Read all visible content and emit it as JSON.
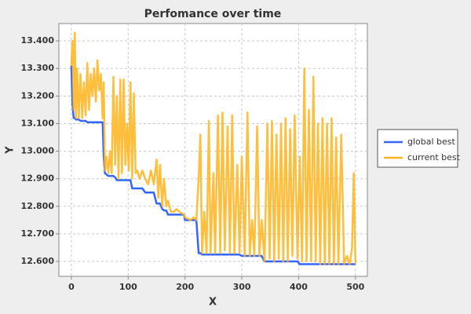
{
  "chart_data": {
    "type": "line",
    "title": "Perfomance over time",
    "x_label": "X",
    "y_label": "Y",
    "x": [
      0,
      2,
      4,
      6,
      8,
      10,
      13,
      16,
      19,
      22,
      25,
      28,
      31,
      34,
      37,
      40,
      43,
      46,
      49,
      52,
      55,
      57,
      59,
      62,
      65,
      68,
      71,
      74,
      77,
      80,
      83,
      86,
      89,
      92,
      95,
      98,
      101,
      104,
      107,
      110,
      113,
      116,
      120,
      125,
      130,
      135,
      140,
      145,
      150,
      153,
      156,
      160,
      163,
      167,
      170,
      175,
      180,
      185,
      190,
      198,
      200,
      210,
      215,
      220,
      224,
      227,
      230,
      234,
      238,
      242,
      245,
      250,
      253,
      258,
      262,
      266,
      270,
      275,
      279,
      283,
      287,
      292,
      296,
      300,
      305,
      310,
      314,
      318,
      322,
      327,
      331,
      335,
      340,
      345,
      349,
      353,
      357,
      361,
      365,
      369,
      373,
      377,
      381,
      385,
      389,
      393,
      398,
      402,
      406,
      410,
      414,
      418,
      422,
      426,
      430,
      434,
      438,
      442,
      446,
      450,
      454,
      458,
      462,
      466,
      470,
      475,
      480,
      485,
      490,
      494,
      497,
      500
    ],
    "series": [
      {
        "name": "global best",
        "color": "#3366ff",
        "values": [
          13.31,
          13.17,
          13.12,
          13.12,
          13.115,
          13.115,
          13.115,
          13.11,
          13.11,
          13.11,
          13.11,
          13.105,
          13.105,
          13.105,
          13.105,
          13.105,
          13.105,
          13.105,
          13.105,
          13.105,
          13.105,
          12.98,
          12.92,
          12.915,
          12.91,
          12.91,
          12.91,
          12.91,
          12.905,
          12.895,
          12.895,
          12.895,
          12.895,
          12.895,
          12.895,
          12.895,
          12.895,
          12.895,
          12.865,
          12.865,
          12.865,
          12.865,
          12.865,
          12.865,
          12.85,
          12.85,
          12.85,
          12.85,
          12.81,
          12.81,
          12.81,
          12.79,
          12.785,
          12.785,
          12.77,
          12.77,
          12.77,
          12.77,
          12.77,
          12.77,
          12.75,
          12.75,
          12.75,
          12.75,
          12.63,
          12.63,
          12.625,
          12.625,
          12.625,
          12.625,
          12.625,
          12.625,
          12.625,
          12.625,
          12.625,
          12.625,
          12.625,
          12.625,
          12.625,
          12.625,
          12.625,
          12.625,
          12.625,
          12.62,
          12.62,
          12.62,
          12.62,
          12.62,
          12.62,
          12.62,
          12.62,
          12.62,
          12.6,
          12.6,
          12.6,
          12.6,
          12.6,
          12.6,
          12.6,
          12.6,
          12.6,
          12.6,
          12.6,
          12.6,
          12.6,
          12.6,
          12.6,
          12.59,
          12.59,
          12.59,
          12.59,
          12.59,
          12.59,
          12.59,
          12.59,
          12.59,
          12.59,
          12.59,
          12.59,
          12.59,
          12.59,
          12.59,
          12.59,
          12.59,
          12.59,
          12.59,
          12.59,
          12.59,
          12.59,
          12.59,
          12.59,
          12.59
        ]
      },
      {
        "name": "current best",
        "color": "#ffb31a",
        "values": [
          13.31,
          13.4,
          13.15,
          13.43,
          13.12,
          13.3,
          13.12,
          13.28,
          13.12,
          13.25,
          13.13,
          13.32,
          13.15,
          13.28,
          13.2,
          13.3,
          13.18,
          13.33,
          13.22,
          13.28,
          13.12,
          13.25,
          12.93,
          12.98,
          12.92,
          13.0,
          12.92,
          13.27,
          12.95,
          13.2,
          12.9,
          13.26,
          12.92,
          13.26,
          12.95,
          13.1,
          12.93,
          13.25,
          12.9,
          13.21,
          12.92,
          12.93,
          12.9,
          12.93,
          12.9,
          12.88,
          12.93,
          12.88,
          12.97,
          12.83,
          12.95,
          12.8,
          12.9,
          12.8,
          12.82,
          12.78,
          12.78,
          12.79,
          12.78,
          12.77,
          12.76,
          12.75,
          12.76,
          12.75,
          12.9,
          13.06,
          12.63,
          12.78,
          12.63,
          13.11,
          12.63,
          12.92,
          12.63,
          13.13,
          12.63,
          13.14,
          12.64,
          13.09,
          12.63,
          13.13,
          12.63,
          12.95,
          12.63,
          12.98,
          12.62,
          13.14,
          12.62,
          12.75,
          12.62,
          13.09,
          12.62,
          12.75,
          12.6,
          13.1,
          12.61,
          13.11,
          12.6,
          13.06,
          12.61,
          13.1,
          12.6,
          13.12,
          12.6,
          13.08,
          12.62,
          13.13,
          12.61,
          12.98,
          12.6,
          13.3,
          12.6,
          13.15,
          12.6,
          13.27,
          12.6,
          13.1,
          12.59,
          13.12,
          12.59,
          13.1,
          12.59,
          13.12,
          12.59,
          13.05,
          12.59,
          13.06,
          12.59,
          12.62,
          12.59,
          12.65,
          12.92,
          12.59
        ]
      }
    ],
    "xlim": [
      -22,
      521
    ],
    "xticks": [
      0,
      100,
      200,
      300,
      400,
      500
    ],
    "ylim": [
      12.546,
      13.463
    ],
    "yticks": [
      {
        "value": 12.6,
        "label": "12.600"
      },
      {
        "value": 12.7,
        "label": "12.700"
      },
      {
        "value": 12.8,
        "label": "12.800"
      },
      {
        "value": 12.9,
        "label": "12.900"
      },
      {
        "value": 13.0,
        "label": "13.000"
      },
      {
        "value": 13.1,
        "label": "13.100"
      },
      {
        "value": 13.2,
        "label": "13.200"
      },
      {
        "value": 13.3,
        "label": "13.300"
      },
      {
        "value": 13.4,
        "label": "13.400"
      }
    ],
    "grid": true,
    "legend": "right"
  }
}
